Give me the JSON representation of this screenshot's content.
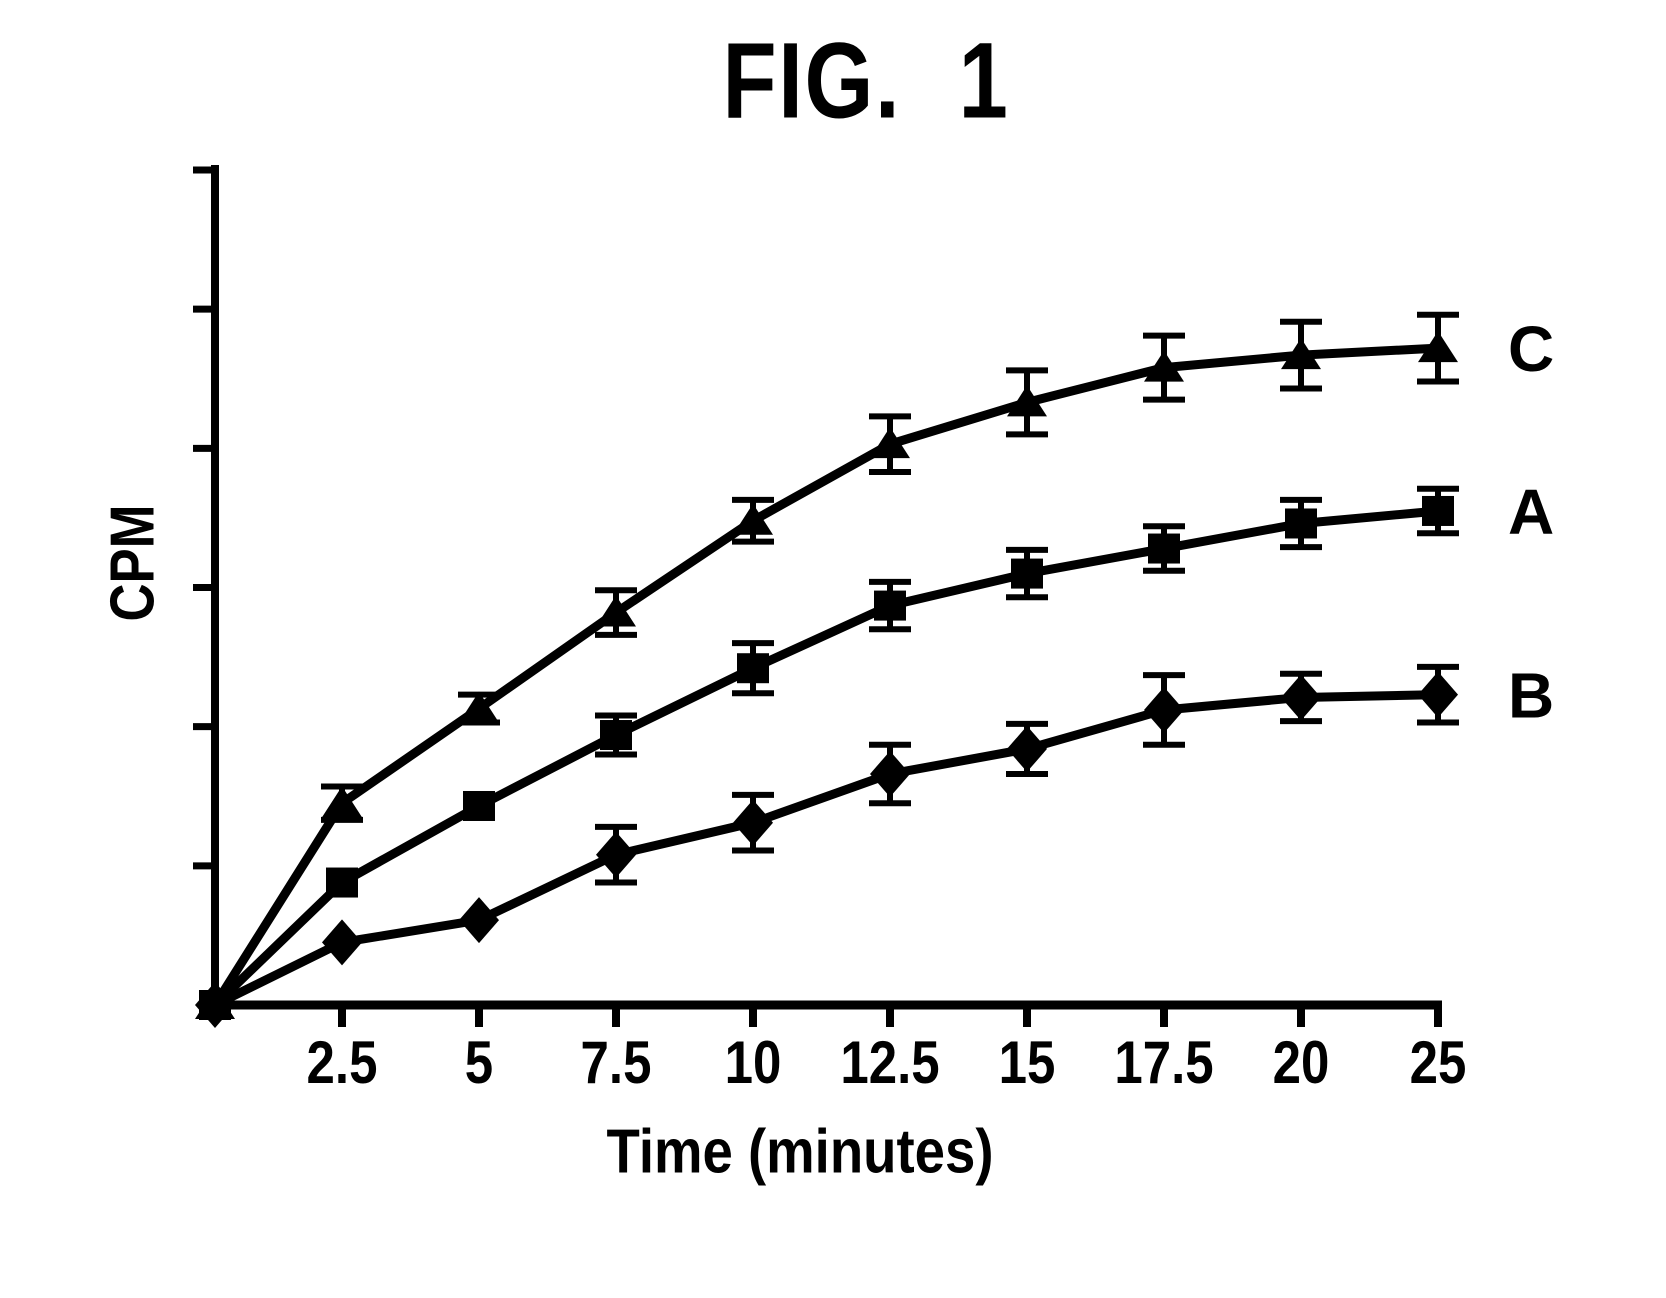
{
  "figure": {
    "title": "FIG. 1"
  },
  "chart_data": {
    "type": "line",
    "title": "FIG. 1",
    "xlabel": "Time (minutes)",
    "ylabel": "CPM",
    "x": [
      0,
      2.5,
      5,
      7.5,
      10,
      12.5,
      15,
      17.5,
      20,
      25
    ],
    "x_tick_labels": [
      "2.5",
      "5",
      "7.5",
      "10",
      "12.5",
      "15",
      "17.5",
      "20",
      "25"
    ],
    "y_axis": {
      "tick_count": 6,
      "tick_labels": [],
      "range": [
        0,
        6
      ],
      "units": "arbitrary CPM units (axis ticks unlabeled); 1 unit = 1 tick interval"
    },
    "grid": false,
    "legend_position": "labels right of last data point",
    "line_color": "#000000",
    "background_color": "#ffffff",
    "error_bars": true,
    "layout_note": "x positions evenly spaced by tick index; final tick is labeled 25 and sits one step after 20 (22.5 skipped)",
    "series": [
      {
        "name": "C",
        "marker": "triangle",
        "values": [
          0,
          1.45,
          2.13,
          2.82,
          3.48,
          4.03,
          4.33,
          4.58,
          4.67,
          4.72
        ],
        "errors": [
          0,
          0.12,
          0.1,
          0.16,
          0.15,
          0.2,
          0.23,
          0.23,
          0.24,
          0.24
        ]
      },
      {
        "name": "A",
        "marker": "square",
        "values": [
          0,
          0.88,
          1.43,
          1.94,
          2.42,
          2.87,
          3.1,
          3.28,
          3.46,
          3.55
        ],
        "errors": [
          0,
          0,
          0,
          0.14,
          0.18,
          0.17,
          0.17,
          0.16,
          0.17,
          0.16
        ]
      },
      {
        "name": "B",
        "marker": "diamond",
        "values": [
          0,
          0.45,
          0.61,
          1.08,
          1.31,
          1.66,
          1.84,
          2.12,
          2.21,
          2.23
        ],
        "errors": [
          0,
          0,
          0,
          0.2,
          0.2,
          0.21,
          0.18,
          0.25,
          0.17,
          0.2
        ]
      }
    ]
  }
}
